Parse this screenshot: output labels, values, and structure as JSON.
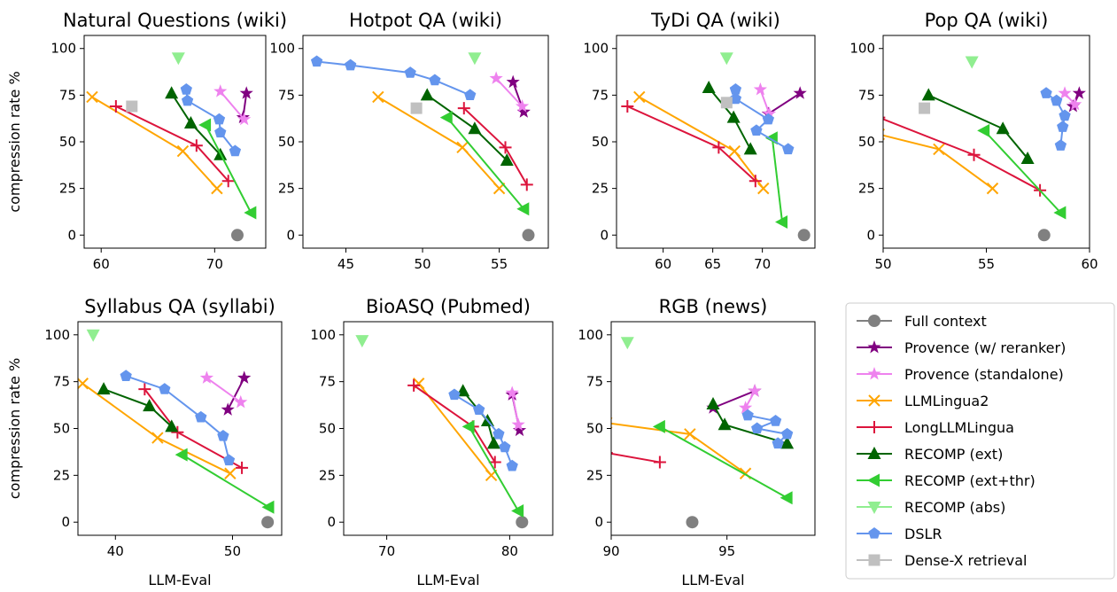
{
  "chart_data": [
    {
      "type": "line",
      "title": "Natural Questions (wiki)",
      "xlabel": "",
      "ylabel": "compression rate %",
      "xlim": [
        58.5,
        74.5
      ],
      "ylim": [
        -7,
        107
      ],
      "xticks": [
        60,
        70
      ],
      "yticks": [
        0,
        25,
        50,
        75,
        100
      ],
      "series": [
        {
          "name": "Full context",
          "x": [
            72.0
          ],
          "y": [
            0
          ]
        },
        {
          "name": "Provence (w/ reranker)",
          "x": [
            72.8,
            72.5
          ],
          "y": [
            76,
            63
          ]
        },
        {
          "name": "Provence (standalone)",
          "x": [
            70.5,
            72.6
          ],
          "y": [
            77,
            62
          ]
        },
        {
          "name": "LLMLingua2",
          "x": [
            59.2,
            67.2,
            70.2
          ],
          "y": [
            74,
            45,
            25
          ]
        },
        {
          "name": "LongLLMLingua",
          "x": [
            61.3,
            68.4,
            71.2
          ],
          "y": [
            69,
            48,
            29
          ]
        },
        {
          "name": "RECOMP (ext)",
          "x": [
            66.2,
            67.9,
            70.5
          ],
          "y": [
            76,
            60,
            43
          ]
        },
        {
          "name": "RECOMP (ext+thr)",
          "x": [
            69.2,
            73.2
          ],
          "y": [
            59,
            12
          ]
        },
        {
          "name": "RECOMP (abs)",
          "x": [
            66.8
          ],
          "y": [
            95
          ]
        },
        {
          "name": "DSLR",
          "x": [
            67.5,
            67.6,
            70.4,
            70.5,
            71.8
          ],
          "y": [
            78,
            72,
            62,
            55,
            45
          ]
        },
        {
          "name": "Dense-X retrieval",
          "x": [
            62.7
          ],
          "y": [
            69
          ]
        }
      ]
    },
    {
      "type": "line",
      "title": "Hotpot QA (wiki)",
      "xlabel": "",
      "ylabel": "",
      "xlim": [
        42.2,
        58.2
      ],
      "ylim": [
        -7,
        107
      ],
      "xticks": [
        45,
        50,
        55
      ],
      "yticks": [
        0,
        25,
        50,
        75,
        100
      ],
      "series": [
        {
          "name": "Full context",
          "x": [
            56.9
          ],
          "y": [
            0
          ]
        },
        {
          "name": "Provence (w/ reranker)",
          "x": [
            55.9,
            56.6
          ],
          "y": [
            82,
            66
          ]
        },
        {
          "name": "Provence (standalone)",
          "x": [
            54.8,
            56.5
          ],
          "y": [
            84,
            69
          ]
        },
        {
          "name": "LLMLingua2",
          "x": [
            47.1,
            52.6,
            55.0
          ],
          "y": [
            74,
            47,
            25
          ]
        },
        {
          "name": "LongLLMLingua",
          "x": [
            52.7,
            55.4,
            56.8
          ],
          "y": [
            68,
            47,
            27
          ]
        },
        {
          "name": "RECOMP (ext)",
          "x": [
            50.3,
            53.4,
            55.5
          ],
          "y": [
            75,
            57,
            40
          ]
        },
        {
          "name": "RECOMP (ext+thr)",
          "x": [
            51.6,
            56.6
          ],
          "y": [
            63,
            14
          ]
        },
        {
          "name": "RECOMP (abs)",
          "x": [
            53.4
          ],
          "y": [
            95
          ]
        },
        {
          "name": "DSLR",
          "x": [
            43.1,
            45.3,
            49.2,
            50.8,
            53.1
          ],
          "y": [
            93,
            91,
            87,
            83,
            75
          ]
        },
        {
          "name": "Dense-X retrieval",
          "x": [
            49.6
          ],
          "y": [
            68
          ]
        }
      ]
    },
    {
      "type": "line",
      "title": "TyDi QA (wiki)",
      "xlabel": "",
      "ylabel": "",
      "xlim": [
        55.3,
        75.3
      ],
      "ylim": [
        -7,
        107
      ],
      "xticks": [
        60,
        65,
        70
      ],
      "yticks": [
        0,
        25,
        50,
        75,
        100
      ],
      "series": [
        {
          "name": "Full context",
          "x": [
            74.2
          ],
          "y": [
            0
          ]
        },
        {
          "name": "Provence (w/ reranker)",
          "x": [
            70.6,
            73.8
          ],
          "y": [
            65,
            76
          ]
        },
        {
          "name": "Provence (standalone)",
          "x": [
            69.8,
            70.7
          ],
          "y": [
            78,
            65
          ]
        },
        {
          "name": "LLMLingua2",
          "x": [
            57.6,
            67.2,
            70.1
          ],
          "y": [
            74,
            45,
            25
          ]
        },
        {
          "name": "LongLLMLingua",
          "x": [
            56.4,
            65.6,
            69.3
          ],
          "y": [
            69,
            47,
            29
          ]
        },
        {
          "name": "RECOMP (ext)",
          "x": [
            64.6,
            67.1,
            68.8
          ],
          "y": [
            79,
            63,
            46
          ]
        },
        {
          "name": "RECOMP (ext+thr)",
          "x": [
            71.0,
            72.0
          ],
          "y": [
            52,
            7
          ]
        },
        {
          "name": "RECOMP (abs)",
          "x": [
            66.4
          ],
          "y": [
            95
          ]
        },
        {
          "name": "DSLR",
          "x": [
            67.3,
            67.3,
            70.6,
            69.4,
            72.6
          ],
          "y": [
            78,
            73,
            62,
            56,
            46
          ]
        },
        {
          "name": "Dense-X retrieval",
          "x": [
            66.4
          ],
          "y": [
            71
          ]
        }
      ]
    },
    {
      "type": "line",
      "title": "Pop QA (wiki)",
      "xlabel": "",
      "ylabel": "",
      "xlim": [
        50,
        60
      ],
      "ylim": [
        -7,
        107
      ],
      "xticks": [
        50,
        55,
        60
      ],
      "yticks": [
        0,
        25,
        50,
        75,
        100
      ],
      "series": [
        {
          "name": "Full context",
          "x": [
            57.8
          ],
          "y": [
            0
          ]
        },
        {
          "name": "Provence (w/ reranker)",
          "x": [
            59.5,
            59.2
          ],
          "y": [
            76,
            69
          ]
        },
        {
          "name": "Provence (standalone)",
          "x": [
            58.8,
            59.3
          ],
          "y": [
            76,
            70
          ]
        },
        {
          "name": "LLMLingua2",
          "x": [
            49.8,
            52.7,
            55.3
          ],
          "y": [
            54,
            46,
            25
          ]
        },
        {
          "name": "LongLLMLingua",
          "x": [
            49.8,
            54.4,
            57.6
          ],
          "y": [
            63,
            43,
            24
          ]
        },
        {
          "name": "RECOMP (ext)",
          "x": [
            52.2,
            55.8,
            57.0
          ],
          "y": [
            75,
            57,
            41
          ]
        },
        {
          "name": "RECOMP (ext+thr)",
          "x": [
            54.9,
            58.6
          ],
          "y": [
            56,
            12
          ]
        },
        {
          "name": "RECOMP (abs)",
          "x": [
            54.3
          ],
          "y": [
            93
          ]
        },
        {
          "name": "DSLR",
          "x": [
            57.9,
            58.4,
            58.8,
            58.7,
            58.6
          ],
          "y": [
            76,
            72,
            64,
            58,
            48
          ]
        },
        {
          "name": "Dense-X retrieval",
          "x": [
            52.0
          ],
          "y": [
            68
          ]
        }
      ]
    },
    {
      "type": "line",
      "title": "Syllabus QA (syllabi)",
      "xlabel": "LLM-Eval",
      "ylabel": "compression rate %",
      "xlim": [
        36.8,
        54.2
      ],
      "ylim": [
        -7,
        107
      ],
      "xticks": [
        40,
        50
      ],
      "yticks": [
        0,
        25,
        50,
        75,
        100
      ],
      "series": [
        {
          "name": "Full context",
          "x": [
            53.0
          ],
          "y": [
            0
          ]
        },
        {
          "name": "Provence (w/ reranker)",
          "x": [
            49.6,
            51.0
          ],
          "y": [
            60,
            77
          ]
        },
        {
          "name": "Provence (standalone)",
          "x": [
            47.8,
            50.7
          ],
          "y": [
            77,
            64
          ]
        },
        {
          "name": "LLMLingua2",
          "x": [
            37.2,
            43.6,
            49.8
          ],
          "y": [
            74,
            45,
            26
          ]
        },
        {
          "name": "LongLLMLingua",
          "x": [
            42.5,
            45.3,
            50.8
          ],
          "y": [
            71,
            48,
            29
          ]
        },
        {
          "name": "RECOMP (ext)",
          "x": [
            39.0,
            42.9,
            44.8
          ],
          "y": [
            71,
            62,
            51
          ]
        },
        {
          "name": "RECOMP (ext+thr)",
          "x": [
            45.7,
            53.1
          ],
          "y": [
            36,
            8
          ]
        },
        {
          "name": "RECOMP (abs)",
          "x": [
            38.1
          ],
          "y": [
            100
          ]
        },
        {
          "name": "DSLR",
          "x": [
            40.9,
            44.2,
            47.3,
            49.2,
            49.7
          ],
          "y": [
            78,
            71,
            56,
            46,
            33
          ]
        },
        {
          "name": "Dense-X retrieval",
          "x": [],
          "y": []
        }
      ]
    },
    {
      "type": "line",
      "title": "BioASQ (Pubmed)",
      "xlabel": "LLM-Eval",
      "ylabel": "",
      "xlim": [
        66.5,
        83.5
      ],
      "ylim": [
        -7,
        107
      ],
      "xticks": [
        70,
        80
      ],
      "yticks": [
        0,
        25,
        50,
        75,
        100
      ],
      "series": [
        {
          "name": "Full context",
          "x": [
            81.0
          ],
          "y": [
            0
          ]
        },
        {
          "name": "Provence (w/ reranker)",
          "x": [
            80.2,
            80.8
          ],
          "y": [
            68,
            49
          ]
        },
        {
          "name": "Provence (standalone)",
          "x": [
            80.2,
            80.7
          ],
          "y": [
            69,
            52
          ]
        },
        {
          "name": "LLMLingua2",
          "x": [
            72.6,
            78.5
          ],
          "y": [
            74,
            25
          ]
        },
        {
          "name": "LongLLMLingua",
          "x": [
            72.2,
            77.0,
            78.8
          ],
          "y": [
            73,
            51,
            32
          ]
        },
        {
          "name": "RECOMP (ext)",
          "x": [
            76.2,
            78.2,
            78.7
          ],
          "y": [
            70,
            54,
            42
          ]
        },
        {
          "name": "RECOMP (ext+thr)",
          "x": [
            76.7,
            80.7
          ],
          "y": [
            51,
            6
          ]
        },
        {
          "name": "RECOMP (abs)",
          "x": [
            68.0
          ],
          "y": [
            97
          ]
        },
        {
          "name": "DSLR",
          "x": [
            75.5,
            77.5,
            79.1,
            79.6,
            80.2
          ],
          "y": [
            68,
            60,
            47,
            40,
            30
          ]
        },
        {
          "name": "Dense-X retrieval",
          "x": [],
          "y": []
        }
      ]
    },
    {
      "type": "line",
      "title": "RGB (news)",
      "xlabel": "LLM-Eval",
      "ylabel": "",
      "xlim": [
        90,
        98.8
      ],
      "ylim": [
        -7,
        107
      ],
      "xticks": [
        90,
        95
      ],
      "yticks": [
        0,
        25,
        50,
        75,
        100
      ],
      "series": [
        {
          "name": "Full context",
          "x": [
            93.5
          ],
          "y": [
            0
          ]
        },
        {
          "name": "Provence (w/ reranker)",
          "x": [
            94.4,
            96.2
          ],
          "y": [
            61,
            70
          ]
        },
        {
          "name": "Provence (standalone)",
          "x": [
            95.8,
            96.2
          ],
          "y": [
            61,
            70
          ]
        },
        {
          "name": "LLMLingua2",
          "x": [
            89.8,
            93.4,
            95.8
          ],
          "y": [
            53,
            47,
            26
          ]
        },
        {
          "name": "LongLLMLingua",
          "x": [
            89.8,
            92.1
          ],
          "y": [
            37,
            32
          ]
        },
        {
          "name": "RECOMP (ext)",
          "x": [
            94.4,
            94.9,
            97.6
          ],
          "y": [
            63,
            52,
            42
          ]
        },
        {
          "name": "RECOMP (ext+thr)",
          "x": [
            92.1,
            97.6
          ],
          "y": [
            51,
            13
          ]
        },
        {
          "name": "RECOMP (abs)",
          "x": [
            90.7
          ],
          "y": [
            96
          ]
        },
        {
          "name": "DSLR",
          "x": [
            95.9,
            97.1,
            96.3,
            97.6,
            97.2
          ],
          "y": [
            57,
            54,
            50,
            47,
            42
          ]
        },
        {
          "name": "Dense-X retrieval",
          "x": [],
          "y": []
        }
      ]
    }
  ],
  "legend": {
    "placement": "bottom-right",
    "entries": [
      {
        "label": "Full context",
        "color": "#808080",
        "marker": "circle"
      },
      {
        "label": "Provence (w/ reranker)",
        "color": "#800080",
        "marker": "star"
      },
      {
        "label": "Provence (standalone)",
        "color": "#ee82ee",
        "marker": "star"
      },
      {
        "label": "LLMLingua2",
        "color": "#ffa500",
        "marker": "x"
      },
      {
        "label": "LongLLMLingua",
        "color": "#dc143c",
        "marker": "plus"
      },
      {
        "label": "RECOMP (ext)",
        "color": "#006400",
        "marker": "triangle-up"
      },
      {
        "label": "RECOMP (ext+thr)",
        "color": "#32cd32",
        "marker": "triangle-left"
      },
      {
        "label": "RECOMP (abs)",
        "color": "#90ee90",
        "marker": "triangle-down"
      },
      {
        "label": "DSLR",
        "color": "#6495ed",
        "marker": "pentagon"
      },
      {
        "label": "Dense-X retrieval",
        "color": "#c0c0c0",
        "marker": "square"
      }
    ]
  },
  "grid": false
}
